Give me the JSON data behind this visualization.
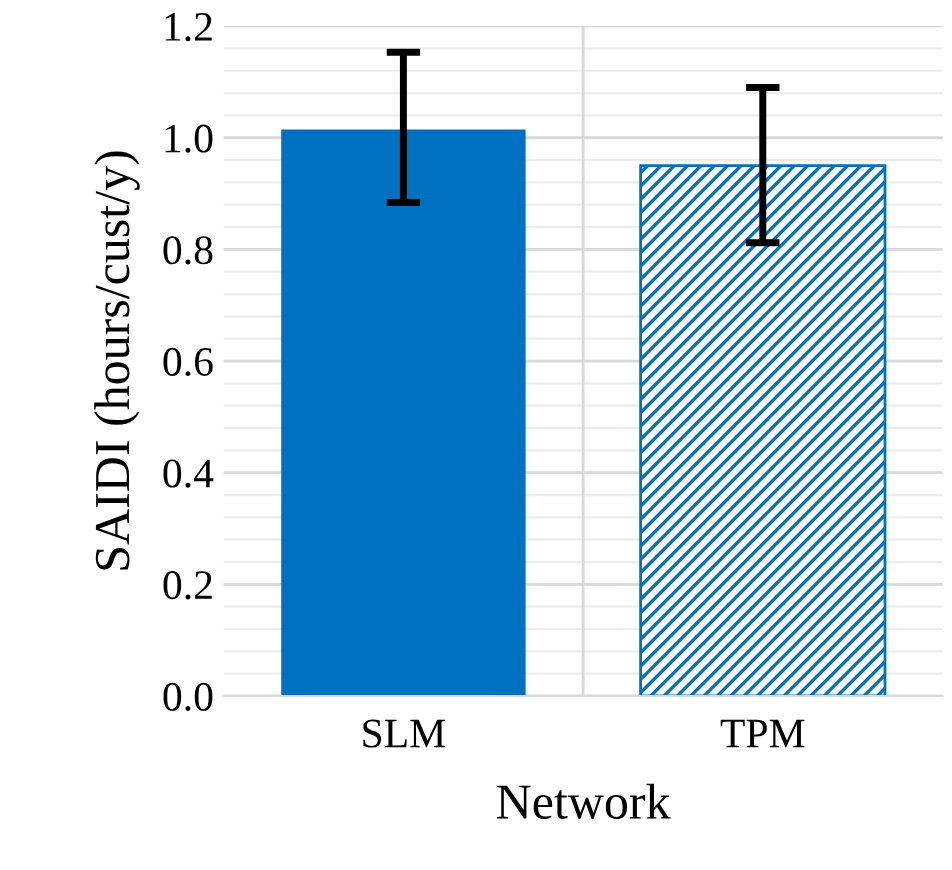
{
  "chart_data": {
    "type": "bar",
    "xlabel": "Network",
    "ylabel": "SAIDI (hours/cust/y)",
    "categories": [
      "SLM",
      "TPM"
    ],
    "values": [
      1.015,
      0.95
    ],
    "errors": [
      [
        0.884,
        1.153
      ],
      [
        0.812,
        1.09
      ]
    ],
    "colors": [
      "#0070c0",
      "#0070c0"
    ],
    "ylim": [
      0,
      1.2
    ],
    "yticks": [
      {
        "value": 0,
        "label": "0.0"
      },
      {
        "value": 0.2,
        "label": "0.2"
      },
      {
        "value": 0.4,
        "label": "0.4"
      },
      {
        "value": 0.6,
        "label": "0.6"
      },
      {
        "value": 0.8,
        "label": "0.8"
      },
      {
        "value": 1.0,
        "label": "1.0"
      },
      {
        "value": 1.2,
        "label": "1.2"
      }
    ],
    "grid": true
  }
}
